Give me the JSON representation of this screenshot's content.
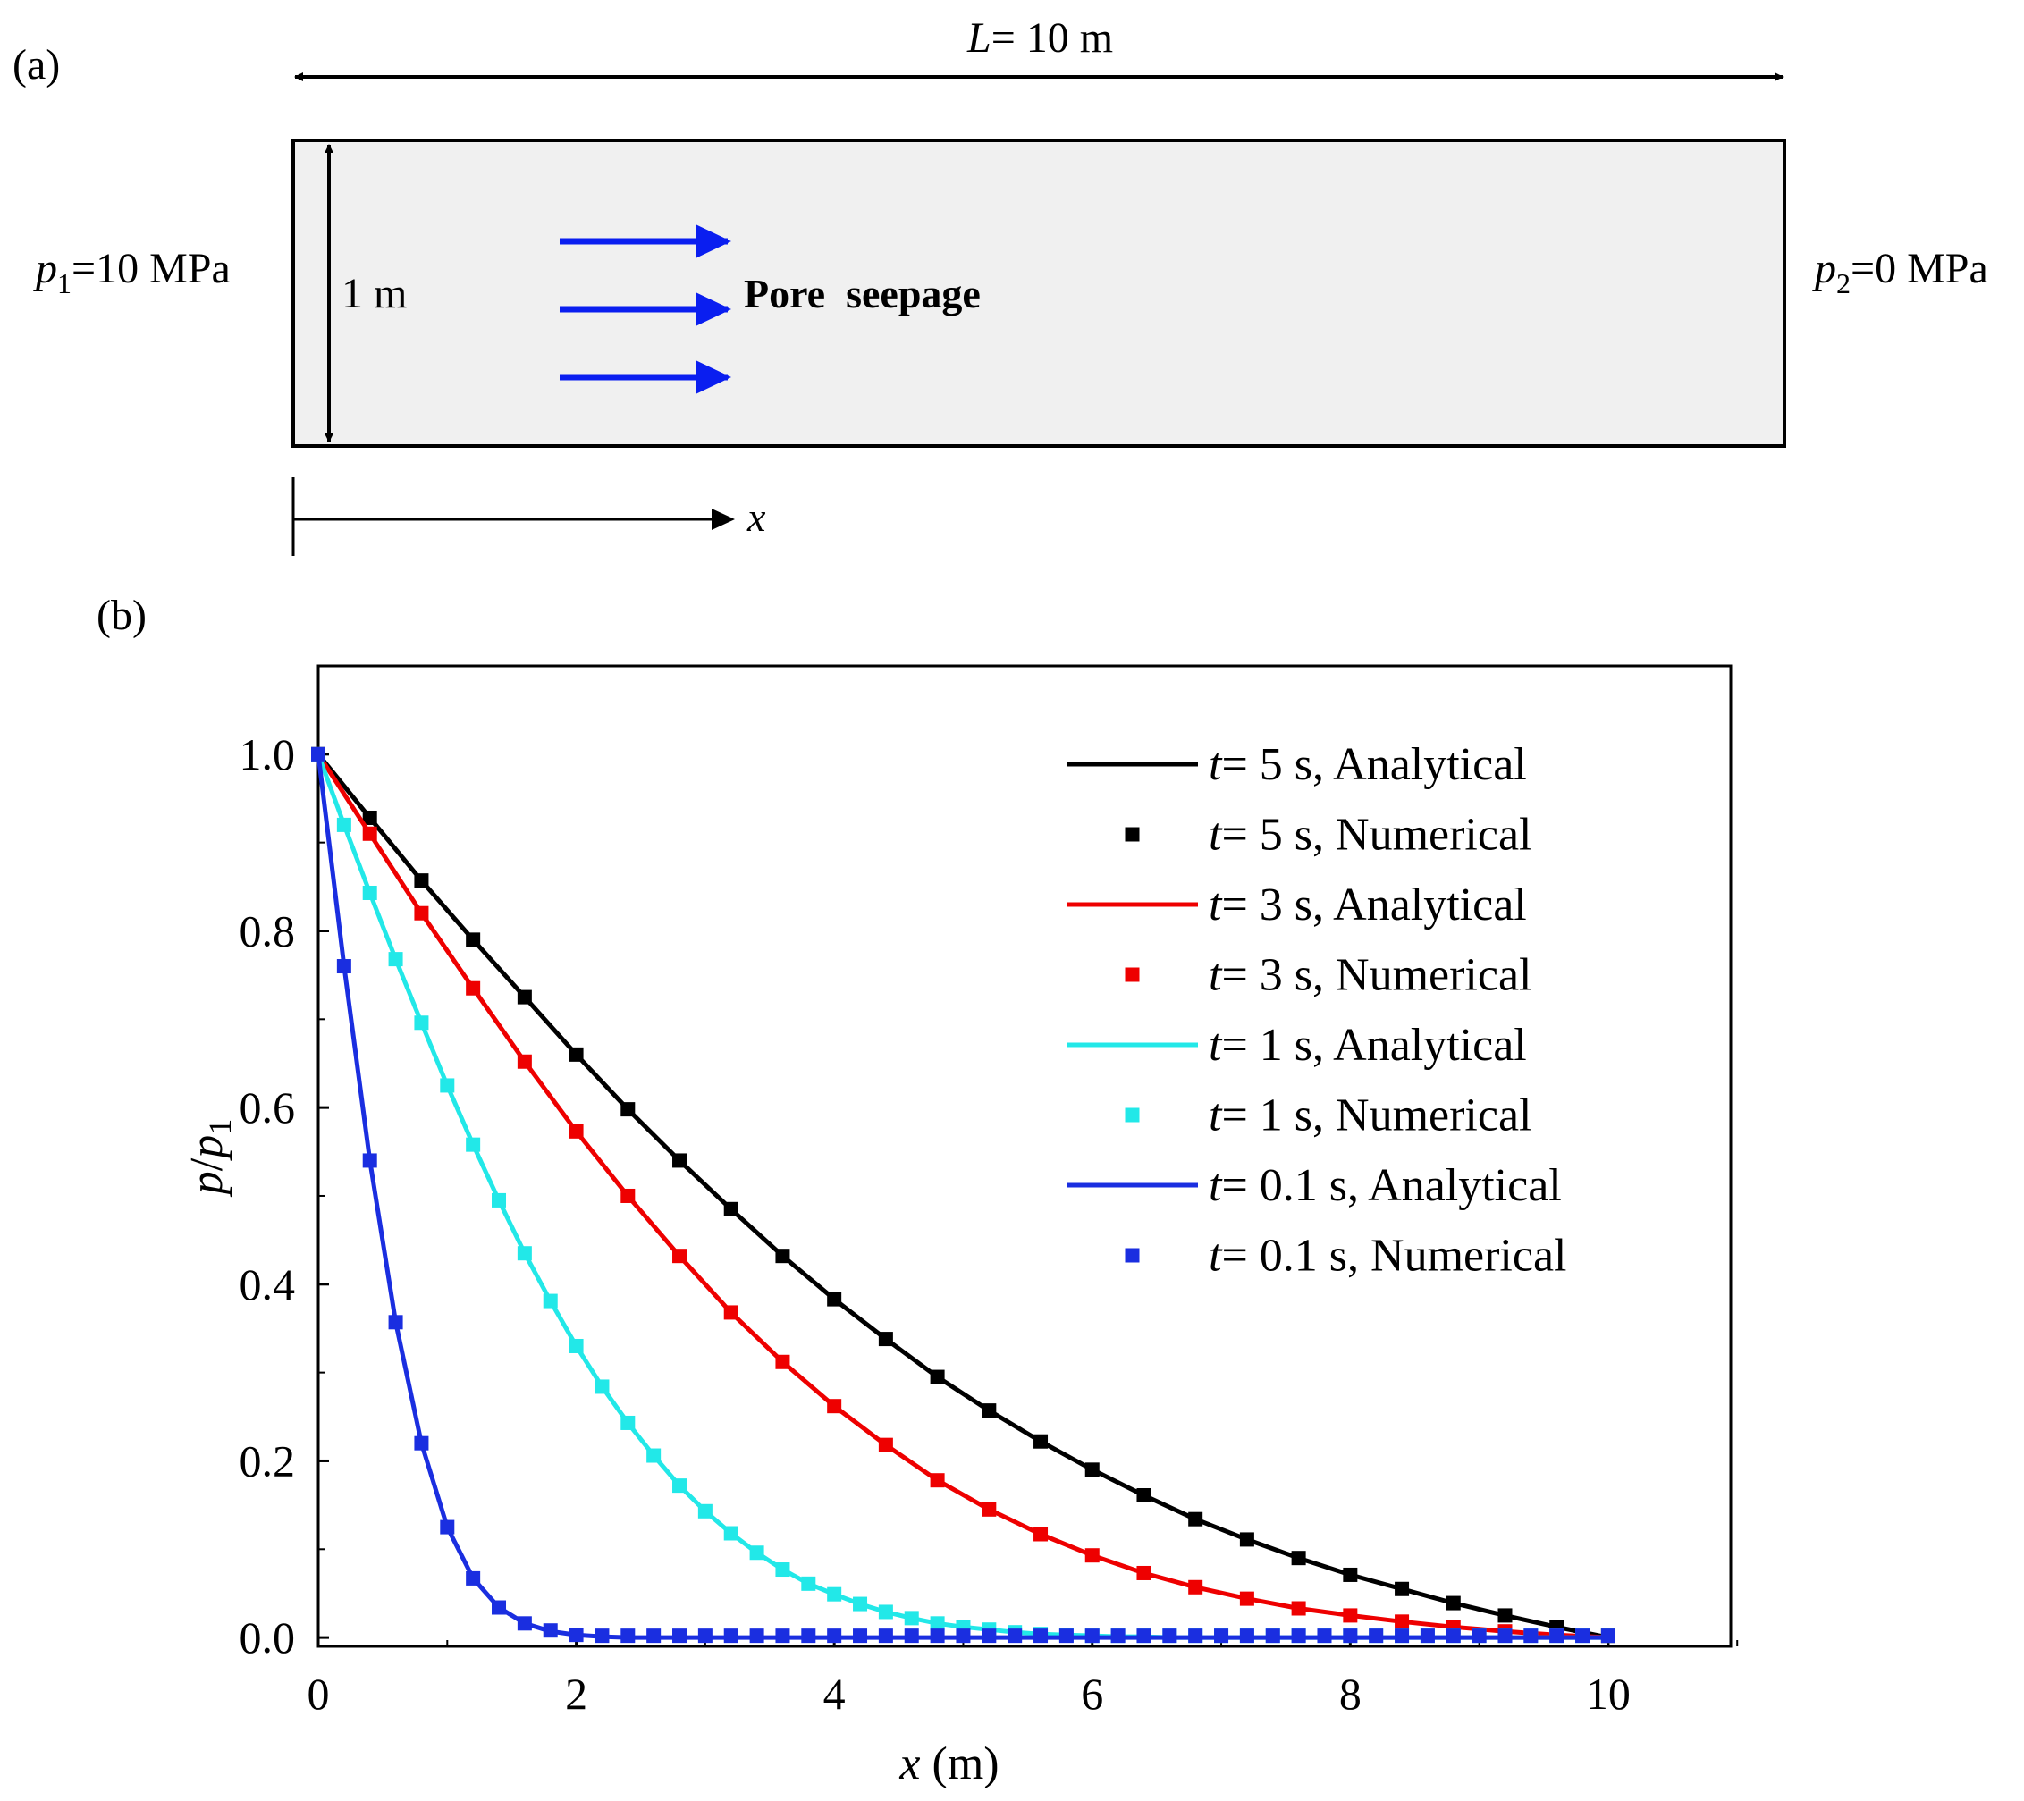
{
  "panel_a": {
    "label": "(a)",
    "length_var": "L",
    "length_rest": "= 10 m",
    "height_label": "1 m",
    "p1_var": "p",
    "p1_sub": "1",
    "p1_rest": "=10 MPa",
    "p2_var": "p",
    "p2_sub": "2",
    "p2_rest": "=0 MPa",
    "seepage_label": "Pore  seepage",
    "x_axis_label": "x",
    "colors": {
      "arrow": "#0a1ef0",
      "domain_fill": "#f0f0f0"
    }
  },
  "panel_b": {
    "label": "(b)"
  },
  "chart_data": {
    "type": "line",
    "title": "",
    "xlabel_var": "x",
    "xlabel_unit": " (m)",
    "ylabel_var": "p",
    "ylabel_sep": "/",
    "ylabel_var2": "p",
    "ylabel_sub": "1",
    "xlim": [
      0,
      10.95
    ],
    "ylim": [
      -0.01,
      1.1
    ],
    "xticks": [
      0,
      2,
      4,
      6,
      8,
      10
    ],
    "xtick_labels": [
      "0",
      "2",
      "4",
      "6",
      "8",
      "10"
    ],
    "yticks": [
      0,
      0.2,
      0.4,
      0.6,
      0.8,
      1.0
    ],
    "ytick_labels": [
      "0.0",
      "0.2",
      "0.4",
      "0.6",
      "0.8",
      "1.0"
    ],
    "legend_position": "top-right",
    "series": [
      {
        "t_var": "t",
        "t_rest": "= 5 s",
        "name_analytical": "t= 5 s, Analytical",
        "name_numerical": "t= 5 s, Numerical",
        "analytical_label": ", Analytical",
        "numerical_label": ", Numerical",
        "color": "#000000",
        "x": [
          0.0,
          0.4,
          0.8,
          1.2,
          1.6,
          2.0,
          2.4,
          2.8,
          3.2,
          3.6,
          4.0,
          4.4,
          4.8,
          5.2,
          5.6,
          6.0,
          6.4,
          6.8,
          7.2,
          7.6,
          8.0,
          8.4,
          8.8,
          9.2,
          9.6,
          10.0
        ],
        "analytical": [
          1.0,
          0.928,
          0.857,
          0.79,
          0.725,
          0.66,
          0.598,
          0.54,
          0.485,
          0.432,
          0.383,
          0.338,
          0.295,
          0.257,
          0.222,
          0.19,
          0.161,
          0.134,
          0.111,
          0.09,
          0.071,
          0.055,
          0.039,
          0.025,
          0.012,
          0.0
        ],
        "numerical": [
          1.0,
          0.928,
          0.857,
          0.79,
          0.725,
          0.66,
          0.598,
          0.54,
          0.485,
          0.432,
          0.383,
          0.338,
          0.295,
          0.257,
          0.222,
          0.19,
          0.161,
          0.134,
          0.111,
          0.09,
          0.071,
          0.055,
          0.039,
          0.025,
          0.012,
          0.002
        ]
      },
      {
        "t_var": "t",
        "t_rest": "= 3 s",
        "name_analytical": "t= 3 s, Analytical",
        "name_numerical": "t= 3 s, Numerical",
        "analytical_label": ", Analytical",
        "numerical_label": ", Numerical",
        "color": "#ee0000",
        "x": [
          0.0,
          0.4,
          0.8,
          1.2,
          1.6,
          2.0,
          2.4,
          2.8,
          3.2,
          3.6,
          4.0,
          4.4,
          4.8,
          5.2,
          5.6,
          6.0,
          6.4,
          6.8,
          7.2,
          7.6,
          8.0,
          8.4,
          8.8,
          9.2,
          9.6,
          10.0
        ],
        "analytical": [
          1.0,
          0.91,
          0.82,
          0.735,
          0.652,
          0.573,
          0.5,
          0.432,
          0.368,
          0.312,
          0.262,
          0.218,
          0.178,
          0.145,
          0.117,
          0.093,
          0.073,
          0.057,
          0.044,
          0.033,
          0.025,
          0.018,
          0.012,
          0.007,
          0.003,
          0.0
        ],
        "numerical": [
          1.0,
          0.91,
          0.82,
          0.735,
          0.652,
          0.573,
          0.5,
          0.432,
          0.368,
          0.312,
          0.262,
          0.218,
          0.178,
          0.145,
          0.117,
          0.093,
          0.073,
          0.057,
          0.044,
          0.033,
          0.025,
          0.018,
          0.012,
          0.007,
          0.003,
          0.002
        ]
      },
      {
        "t_var": "t",
        "t_rest": "= 1 s",
        "name_analytical": "t= 1 s, Analytical",
        "name_numerical": "t= 1 s, Numerical",
        "analytical_label": ", Analytical",
        "numerical_label": ", Numerical",
        "color": "#22e8e8",
        "x": [
          0.0,
          0.2,
          0.4,
          0.6,
          0.8,
          1.0,
          1.2,
          1.4,
          1.6,
          1.8,
          2.0,
          2.2,
          2.4,
          2.6,
          2.8,
          3.0,
          3.2,
          3.4,
          3.6,
          3.8,
          4.0,
          4.2,
          4.4,
          4.6,
          4.8,
          5.0,
          5.2,
          5.4,
          5.6,
          5.8,
          6.0,
          6.2,
          6.4,
          6.6,
          6.8,
          7.0,
          7.2,
          7.4,
          7.6,
          7.8,
          8.0,
          8.2,
          8.4,
          8.6,
          8.8,
          9.0,
          9.2,
          9.4,
          9.6,
          9.8,
          10.0
        ],
        "analytical": [
          1.0,
          0.92,
          0.843,
          0.768,
          0.696,
          0.625,
          0.558,
          0.495,
          0.435,
          0.381,
          0.33,
          0.284,
          0.243,
          0.206,
          0.172,
          0.143,
          0.118,
          0.096,
          0.077,
          0.061,
          0.049,
          0.038,
          0.029,
          0.022,
          0.016,
          0.012,
          0.009,
          0.006,
          0.004,
          0.003,
          0.002,
          0.001,
          0.001,
          0.0,
          0.0,
          0.0,
          0.0,
          0.0,
          0.0,
          0.0,
          0.0,
          0.0,
          0.0,
          0.0,
          0.0,
          0.0,
          0.0,
          0.0,
          0.0,
          0.0,
          0.0
        ],
        "numerical": [
          1.0,
          0.92,
          0.843,
          0.768,
          0.696,
          0.625,
          0.558,
          0.495,
          0.435,
          0.381,
          0.33,
          0.284,
          0.243,
          0.206,
          0.172,
          0.143,
          0.118,
          0.096,
          0.077,
          0.061,
          0.049,
          0.038,
          0.029,
          0.022,
          0.016,
          0.012,
          0.009,
          0.006,
          0.004,
          0.003,
          0.002,
          0.002,
          0.002,
          0.002,
          0.002,
          0.002,
          0.002,
          0.002,
          0.002,
          0.002,
          0.002,
          0.002,
          0.002,
          0.002,
          0.002,
          0.002,
          0.002,
          0.002,
          0.002,
          0.002,
          0.002
        ]
      },
      {
        "t_var": "t",
        "t_rest": "= 0.1 s",
        "name_analytical": "t= 0.1 s, Analytical",
        "name_numerical": "t= 0.1 s, Numerical",
        "analytical_label": ", Analytical",
        "numerical_label": ", Numerical",
        "color": "#1a2ee0",
        "x": [
          0.0,
          0.2,
          0.4,
          0.6,
          0.8,
          1.0,
          1.2,
          1.4,
          1.6,
          1.8,
          2.0,
          2.2,
          2.4,
          2.6,
          2.8,
          3.0,
          3.2,
          3.4,
          3.6,
          3.8,
          4.0,
          4.2,
          4.4,
          4.6,
          4.8,
          5.0,
          5.2,
          5.4,
          5.6,
          5.8,
          6.0,
          6.2,
          6.4,
          6.6,
          6.8,
          7.0,
          7.2,
          7.4,
          7.6,
          7.8,
          8.0,
          8.2,
          8.4,
          8.6,
          8.8,
          9.0,
          9.2,
          9.4,
          9.6,
          9.8,
          10.0
        ],
        "analytical": [
          1.0,
          0.76,
          0.54,
          0.357,
          0.22,
          0.125,
          0.067,
          0.034,
          0.016,
          0.007,
          0.003,
          0.001,
          0.0,
          0.0,
          0.0,
          0.0,
          0.0,
          0.0,
          0.0,
          0.0,
          0.0,
          0.0,
          0.0,
          0.0,
          0.0,
          0.0,
          0.0,
          0.0,
          0.0,
          0.0,
          0.0,
          0.0,
          0.0,
          0.0,
          0.0,
          0.0,
          0.0,
          0.0,
          0.0,
          0.0,
          0.0,
          0.0,
          0.0,
          0.0,
          0.0,
          0.0,
          0.0,
          0.0,
          0.0,
          0.0,
          0.0
        ],
        "numerical": [
          1.0,
          0.76,
          0.54,
          0.357,
          0.22,
          0.125,
          0.067,
          0.034,
          0.016,
          0.008,
          0.003,
          0.002,
          0.002,
          0.002,
          0.002,
          0.002,
          0.002,
          0.002,
          0.002,
          0.002,
          0.002,
          0.002,
          0.002,
          0.002,
          0.002,
          0.002,
          0.002,
          0.002,
          0.002,
          0.002,
          0.002,
          0.002,
          0.002,
          0.002,
          0.002,
          0.002,
          0.002,
          0.002,
          0.002,
          0.002,
          0.002,
          0.002,
          0.002,
          0.002,
          0.002,
          0.002,
          0.002,
          0.002,
          0.002,
          0.002,
          0.002
        ]
      }
    ]
  }
}
